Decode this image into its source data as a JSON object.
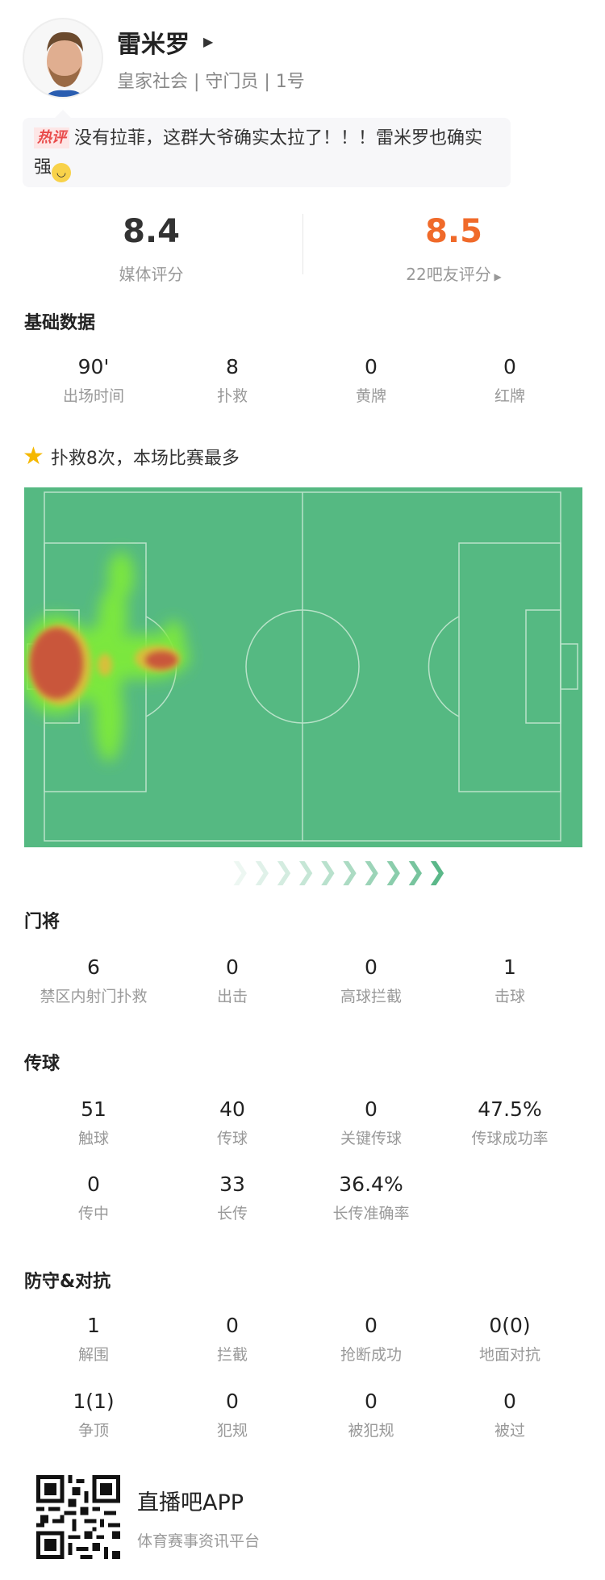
{
  "player": {
    "name": "雷米罗",
    "subtitle": "皇家社会 | 守门员 | 1号"
  },
  "comment": {
    "tag": "热评",
    "text": "没有拉菲，这群大爷确实太拉了！！！雷米罗也确实强",
    "emoji": "smile-emoji"
  },
  "ratings": {
    "media": {
      "value": "8.4",
      "label": "媒体评分"
    },
    "fans": {
      "value": "8.5",
      "label": "22吧友评分",
      "color": "#f06a2a"
    }
  },
  "basic": {
    "title": "基础数据",
    "items": [
      {
        "value": "90'",
        "label": "出场时间"
      },
      {
        "value": "8",
        "label": "扑救"
      },
      {
        "value": "0",
        "label": "黄牌"
      },
      {
        "value": "0",
        "label": "红牌"
      }
    ]
  },
  "highlight": {
    "icon": "star-icon",
    "text": "扑救8次，本场比赛最多"
  },
  "heatmap": {
    "pitch_color": "#55b982"
  },
  "goalkeeping": {
    "title": "门将",
    "items": [
      {
        "value": "6",
        "label": "禁区内射门扑救"
      },
      {
        "value": "0",
        "label": "出击"
      },
      {
        "value": "0",
        "label": "高球拦截"
      },
      {
        "value": "1",
        "label": "击球"
      }
    ]
  },
  "passing": {
    "title": "传球",
    "rows": [
      [
        {
          "value": "51",
          "label": "触球"
        },
        {
          "value": "40",
          "label": "传球"
        },
        {
          "value": "0",
          "label": "关键传球"
        },
        {
          "value": "47.5%",
          "label": "传球成功率"
        }
      ],
      [
        {
          "value": "0",
          "label": "传中"
        },
        {
          "value": "33",
          "label": "长传"
        },
        {
          "value": "36.4%",
          "label": "长传准确率"
        }
      ]
    ]
  },
  "defense": {
    "title": "防守&对抗",
    "rows": [
      [
        {
          "value": "1",
          "label": "解围"
        },
        {
          "value": "0",
          "label": "拦截"
        },
        {
          "value": "0",
          "label": "抢断成功"
        },
        {
          "value": "0(0)",
          "label": "地面对抗"
        }
      ],
      [
        {
          "value": "1(1)",
          "label": "争顶"
        },
        {
          "value": "0",
          "label": "犯规"
        },
        {
          "value": "0",
          "label": "被犯规"
        },
        {
          "value": "0",
          "label": "被过"
        }
      ]
    ]
  },
  "footer": {
    "app_name": "直播吧APP",
    "tagline": "体育赛事资讯平台"
  }
}
